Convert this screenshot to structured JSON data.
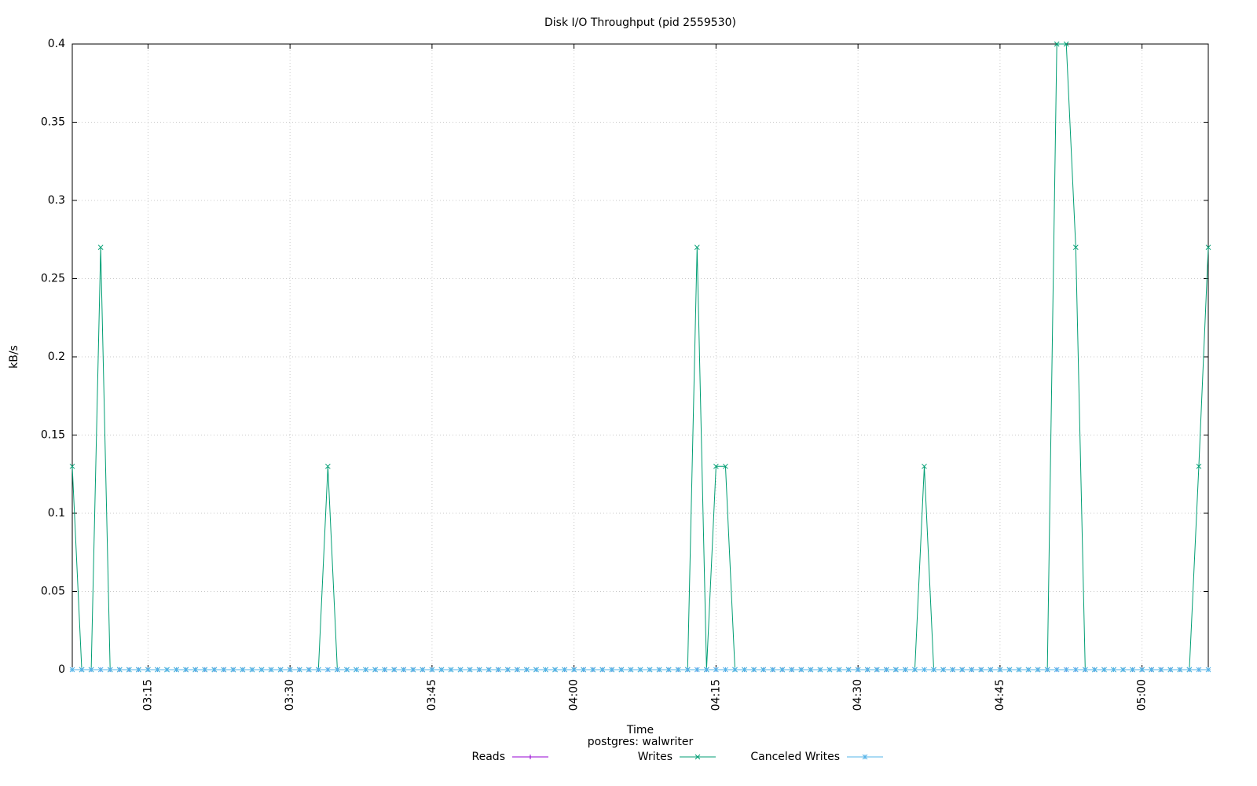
{
  "chart_data": {
    "type": "line",
    "title": "Disk I/O Throughput (pid 2559530)",
    "subtitle": "postgres: walwriter",
    "x_label": "Time",
    "y_label": "kB/s",
    "x": [
      "03:07",
      "03:08",
      "03:09",
      "03:10",
      "03:11",
      "03:12",
      "03:13",
      "03:14",
      "03:15",
      "03:16",
      "03:17",
      "03:18",
      "03:19",
      "03:20",
      "03:21",
      "03:22",
      "03:23",
      "03:24",
      "03:25",
      "03:26",
      "03:27",
      "03:28",
      "03:29",
      "03:30",
      "03:31",
      "03:32",
      "03:33",
      "03:34",
      "03:35",
      "03:36",
      "03:37",
      "03:38",
      "03:39",
      "03:40",
      "03:41",
      "03:42",
      "03:43",
      "03:44",
      "03:45",
      "03:46",
      "03:47",
      "03:48",
      "03:49",
      "03:50",
      "03:51",
      "03:52",
      "03:53",
      "03:54",
      "03:55",
      "03:56",
      "03:57",
      "03:58",
      "03:59",
      "04:00",
      "04:01",
      "04:02",
      "04:03",
      "04:04",
      "04:05",
      "04:06",
      "04:07",
      "04:08",
      "04:09",
      "04:10",
      "04:11",
      "04:12",
      "04:13",
      "04:14",
      "04:15",
      "04:16",
      "04:17",
      "04:18",
      "04:19",
      "04:20",
      "04:21",
      "04:22",
      "04:23",
      "04:24",
      "04:25",
      "04:26",
      "04:27",
      "04:28",
      "04:29",
      "04:30",
      "04:31",
      "04:32",
      "04:33",
      "04:34",
      "04:35",
      "04:36",
      "04:37",
      "04:38",
      "04:39",
      "04:40",
      "04:41",
      "04:42",
      "04:43",
      "04:44",
      "04:45",
      "04:46",
      "04:47",
      "04:48",
      "04:49",
      "04:50",
      "04:51",
      "04:52",
      "04:53",
      "04:54",
      "04:55",
      "04:56",
      "04:57",
      "04:58",
      "04:59",
      "05:00",
      "05:01",
      "05:02",
      "05:03",
      "05:04",
      "05:05",
      "05:06",
      "05:07"
    ],
    "series": [
      {
        "name": "Reads",
        "color": "#9400d3",
        "marker": "+",
        "values": [
          0,
          0,
          0,
          0,
          0,
          0,
          0,
          0,
          0,
          0,
          0,
          0,
          0,
          0,
          0,
          0,
          0,
          0,
          0,
          0,
          0,
          0,
          0,
          0,
          0,
          0,
          0,
          0,
          0,
          0,
          0,
          0,
          0,
          0,
          0,
          0,
          0,
          0,
          0,
          0,
          0,
          0,
          0,
          0,
          0,
          0,
          0,
          0,
          0,
          0,
          0,
          0,
          0,
          0,
          0,
          0,
          0,
          0,
          0,
          0,
          0,
          0,
          0,
          0,
          0,
          0,
          0,
          0,
          0,
          0,
          0,
          0,
          0,
          0,
          0,
          0,
          0,
          0,
          0,
          0,
          0,
          0,
          0,
          0,
          0,
          0,
          0,
          0,
          0,
          0,
          0,
          0,
          0,
          0,
          0,
          0,
          0,
          0,
          0,
          0,
          0,
          0,
          0,
          0,
          0,
          0,
          0,
          0,
          0,
          0,
          0,
          0,
          0,
          0,
          0,
          0,
          0,
          0,
          0,
          0,
          0
        ]
      },
      {
        "name": "Writes",
        "color": "#009e73",
        "marker": "x",
        "values": [
          0.13,
          0,
          0,
          0.27,
          0,
          0,
          0,
          0,
          0,
          0,
          0,
          0,
          0,
          0,
          0,
          0,
          0,
          0,
          0,
          0,
          0,
          0,
          0,
          0,
          0,
          0,
          0,
          0.13,
          0,
          0,
          0,
          0,
          0,
          0,
          0,
          0,
          0,
          0,
          0,
          0,
          0,
          0,
          0,
          0,
          0,
          0,
          0,
          0,
          0,
          0,
          0,
          0,
          0,
          0,
          0,
          0,
          0,
          0,
          0,
          0,
          0,
          0,
          0,
          0,
          0,
          0,
          0.27,
          0,
          0.13,
          0.13,
          0,
          0,
          0,
          0,
          0,
          0,
          0,
          0,
          0,
          0,
          0,
          0,
          0,
          0,
          0,
          0,
          0,
          0,
          0,
          0,
          0.13,
          0,
          0,
          0,
          0,
          0,
          0,
          0,
          0,
          0,
          0,
          0,
          0,
          0,
          0.4,
          0.4,
          0.27,
          0,
          0,
          0,
          0,
          0,
          0,
          0,
          0,
          0,
          0,
          0,
          0,
          0.13,
          0.27
        ]
      },
      {
        "name": "Canceled Writes",
        "color": "#56b4e9",
        "marker": "*",
        "values": [
          0,
          0,
          0,
          0,
          0,
          0,
          0,
          0,
          0,
          0,
          0,
          0,
          0,
          0,
          0,
          0,
          0,
          0,
          0,
          0,
          0,
          0,
          0,
          0,
          0,
          0,
          0,
          0,
          0,
          0,
          0,
          0,
          0,
          0,
          0,
          0,
          0,
          0,
          0,
          0,
          0,
          0,
          0,
          0,
          0,
          0,
          0,
          0,
          0,
          0,
          0,
          0,
          0,
          0,
          0,
          0,
          0,
          0,
          0,
          0,
          0,
          0,
          0,
          0,
          0,
          0,
          0,
          0,
          0,
          0,
          0,
          0,
          0,
          0,
          0,
          0,
          0,
          0,
          0,
          0,
          0,
          0,
          0,
          0,
          0,
          0,
          0,
          0,
          0,
          0,
          0,
          0,
          0,
          0,
          0,
          0,
          0,
          0,
          0,
          0,
          0,
          0,
          0,
          0,
          0,
          0,
          0,
          0,
          0,
          0,
          0,
          0,
          0,
          0,
          0,
          0,
          0,
          0,
          0,
          0,
          0
        ]
      }
    ],
    "xlim": [
      "03:07",
      "05:07"
    ],
    "xticks": [
      "03:15",
      "03:30",
      "03:45",
      "04:00",
      "04:15",
      "04:30",
      "04:45",
      "05:00"
    ],
    "ylim": [
      0,
      0.4
    ],
    "yticks": [
      0,
      0.05,
      0.1,
      0.15,
      0.2,
      0.25,
      0.3,
      0.35,
      0.4
    ],
    "grid": true,
    "legend": "bottom"
  }
}
